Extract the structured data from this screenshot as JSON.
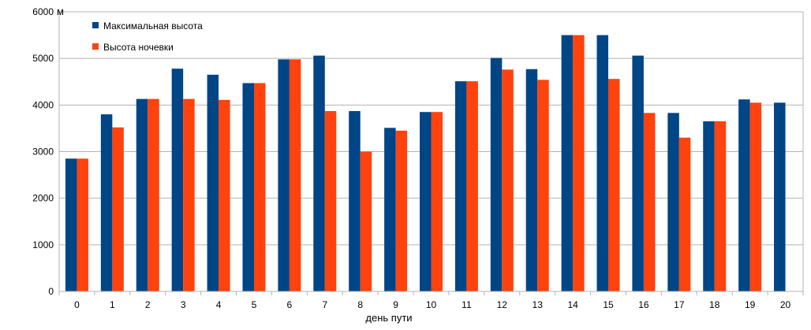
{
  "chart_data": {
    "type": "bar",
    "title": "",
    "xlabel": "день пути",
    "ylabel": "",
    "y_unit": "м",
    "ylim": [
      0,
      6000
    ],
    "y_ticks": [
      0,
      1000,
      2000,
      3000,
      4000,
      5000,
      6000
    ],
    "grid": true,
    "legend_position": "top-left",
    "categories": [
      "0",
      "1",
      "2",
      "3",
      "4",
      "5",
      "6",
      "7",
      "8",
      "9",
      "10",
      "11",
      "12",
      "13",
      "14",
      "15",
      "16",
      "17",
      "18",
      "19",
      "20"
    ],
    "series": [
      {
        "name": "Максимальная высота",
        "color": "#004586",
        "values": [
          2850,
          3800,
          4130,
          4780,
          4650,
          4470,
          4980,
          5060,
          3870,
          3510,
          3850,
          4510,
          5010,
          4770,
          5500,
          5500,
          5060,
          3830,
          3650,
          4120,
          4050
        ]
      },
      {
        "name": "Высота ночевки",
        "color": "#ff420e",
        "values": [
          2850,
          3520,
          4130,
          4130,
          4110,
          4470,
          4980,
          3870,
          3000,
          3450,
          3850,
          4510,
          4760,
          4540,
          5500,
          4560,
          3830,
          3300,
          3650,
          4050,
          null
        ]
      }
    ]
  }
}
